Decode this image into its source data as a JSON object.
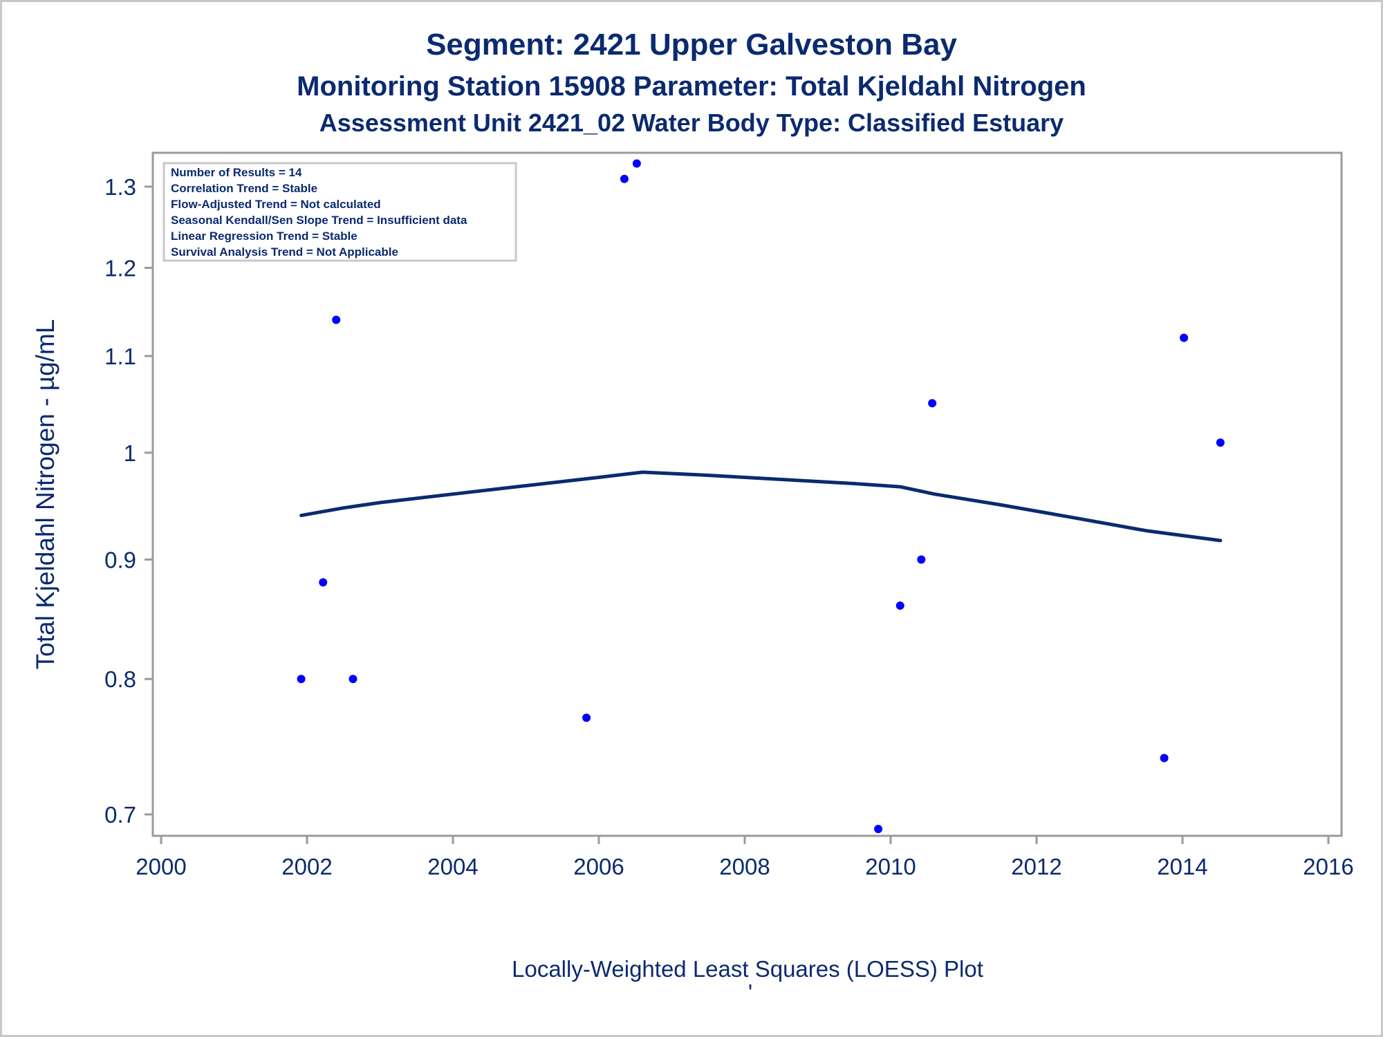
{
  "titles": [
    "Segment: 2421  Upper Galveston Bay",
    "Monitoring Station 15908 Parameter: Total Kjeldahl Nitrogen",
    "Assessment Unit 2421_02   Water Body Type: Classified Estuary"
  ],
  "stats": [
    "Number of Results = 14",
    "Correlation Trend = Stable",
    "Flow-Adjusted Trend = Not calculated",
    "Seasonal Kendall/Sen Slope Trend = Insufficient data",
    "Linear Regression Trend = Stable",
    "Survival Analysis Trend = Not Applicable"
  ],
  "footnote": "Locally-Weighted Least Squares (LOESS) Plot",
  "footnote_mark": "'",
  "colors": {
    "text": "#0b2a6f",
    "points": "#0000ff",
    "loess": "#0b2a6f",
    "axis": "#9a9a9a"
  },
  "chart_data": {
    "type": "scatter",
    "title": "Segment: 2421  Upper Galveston Bay",
    "xlabel": "",
    "ylabel": "Total Kjeldahl Nitrogen -  µg/mL",
    "xlim": [
      2000,
      2016
    ],
    "ylim": [
      0.69,
      1.34
    ],
    "y_scale": "log",
    "grid": false,
    "legend": "none",
    "x_ticks": [
      2000,
      2002,
      2004,
      2006,
      2008,
      2010,
      2012,
      2014,
      2016
    ],
    "x_tick_labels": [
      "2000",
      "2002",
      "2004",
      "2006",
      "2008",
      "2010",
      "2012",
      "2014",
      "2016"
    ],
    "y_ticks": [
      0.7,
      0.8,
      0.9,
      1.0,
      1.1,
      1.2,
      1.3
    ],
    "y_tick_labels": [
      "0.7",
      "0.8",
      "0.9",
      "1",
      "1.1",
      "1.2",
      "1.3"
    ],
    "series": [
      {
        "type": "scatter",
        "points": [
          {
            "x": 2001.92,
            "y": 0.8
          },
          {
            "x": 2002.22,
            "y": 0.88
          },
          {
            "x": 2002.4,
            "y": 1.14
          },
          {
            "x": 2002.63,
            "y": 0.8
          },
          {
            "x": 2005.83,
            "y": 0.77
          },
          {
            "x": 2006.35,
            "y": 1.31
          },
          {
            "x": 2006.52,
            "y": 1.33
          },
          {
            "x": 2009.83,
            "y": 0.69
          },
          {
            "x": 2010.13,
            "y": 0.86
          },
          {
            "x": 2010.42,
            "y": 0.9
          },
          {
            "x": 2010.57,
            "y": 1.05
          },
          {
            "x": 2013.75,
            "y": 0.74
          },
          {
            "x": 2014.02,
            "y": 1.12
          },
          {
            "x": 2014.52,
            "y": 1.01
          }
        ]
      },
      {
        "type": "line",
        "points": [
          {
            "x": 2001.92,
            "y": 0.94
          },
          {
            "x": 2002.5,
            "y": 0.947
          },
          {
            "x": 2003.0,
            "y": 0.952
          },
          {
            "x": 2004.0,
            "y": 0.96
          },
          {
            "x": 2005.0,
            "y": 0.968
          },
          {
            "x": 2006.0,
            "y": 0.976
          },
          {
            "x": 2006.6,
            "y": 0.981
          },
          {
            "x": 2007.5,
            "y": 0.978
          },
          {
            "x": 2008.5,
            "y": 0.974
          },
          {
            "x": 2009.5,
            "y": 0.97
          },
          {
            "x": 2010.13,
            "y": 0.967
          },
          {
            "x": 2010.6,
            "y": 0.96
          },
          {
            "x": 2011.5,
            "y": 0.95
          },
          {
            "x": 2012.5,
            "y": 0.938
          },
          {
            "x": 2013.5,
            "y": 0.926
          },
          {
            "x": 2014.52,
            "y": 0.917
          }
        ]
      }
    ]
  }
}
